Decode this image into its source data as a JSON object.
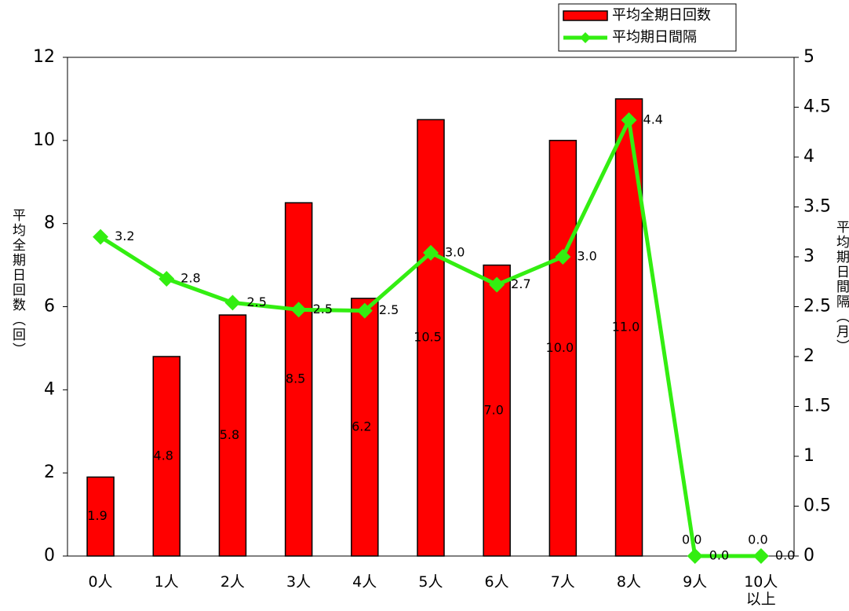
{
  "chart_data": {
    "type": "bar",
    "categories": [
      "0人",
      "1人",
      "2人",
      "3人",
      "4人",
      "5人",
      "6人",
      "7人",
      "8人",
      "9人",
      "10人\n以上"
    ],
    "series": [
      {
        "name": "平均全期日回数",
        "type": "bar",
        "color": "#ff0000",
        "values": [
          1.9,
          4.8,
          5.8,
          8.5,
          6.2,
          10.5,
          7.0,
          10.0,
          11.0,
          0,
          0
        ],
        "value_labels": [
          "1.9",
          "4.8",
          "5.8",
          "8.5",
          "6.2",
          "10.5",
          "7.0",
          "10.0",
          "11.0",
          "0.0",
          "0.0"
        ]
      },
      {
        "name": "平均期日間隔",
        "type": "line",
        "axis": "y2",
        "color": "#33ee11",
        "values": [
          3.2,
          2.78,
          2.54,
          2.47,
          2.46,
          3.04,
          2.72,
          3.0,
          4.37,
          0,
          0
        ],
        "value_labels": [
          "3.2",
          "2.8",
          "2.5",
          "2.5",
          "2.5",
          "3.0",
          "2.7",
          "3.0",
          "4.4",
          "0.0",
          "0.0"
        ]
      }
    ],
    "y_label": "平均全期日回数（回）",
    "y2_label": "平均期日間隔（月）",
    "ylim": [
      0,
      12
    ],
    "yticks": [
      0,
      2,
      4,
      6,
      8,
      10,
      12
    ],
    "y2lim": [
      0,
      5
    ],
    "y2ticks": [
      0,
      0.5,
      1,
      1.5,
      2,
      2.5,
      3,
      3.5,
      4,
      4.5,
      5
    ],
    "legend": "top-right"
  }
}
